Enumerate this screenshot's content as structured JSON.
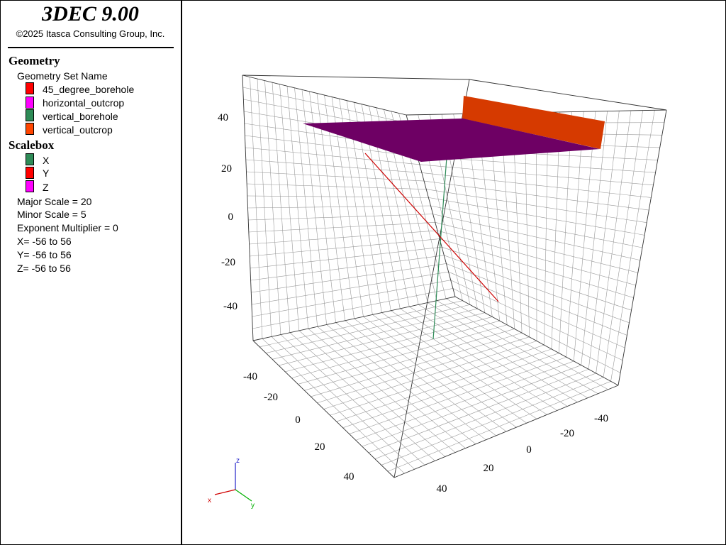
{
  "app": {
    "title": "3DEC 9.00",
    "copyright": "©2025 Itasca Consulting Group, Inc."
  },
  "legend": {
    "geometry_title": "Geometry",
    "geometry_set_header": "Geometry Set Name",
    "geometry_sets": [
      {
        "label": "45_degree_borehole",
        "color": "#ff0000"
      },
      {
        "label": "horizontal_outcrop",
        "color": "#ff00ff"
      },
      {
        "label": "vertical_borehole",
        "color": "#2e8b57"
      },
      {
        "label": "vertical_outcrop",
        "color": "#ff4500"
      }
    ],
    "scalebox_title": "Scalebox",
    "axes": [
      {
        "label": "X",
        "color": "#2e8b57"
      },
      {
        "label": "Y",
        "color": "#ff0000"
      },
      {
        "label": "Z",
        "color": "#ff00ff"
      }
    ],
    "info": [
      "Major Scale = 20",
      "Minor Scale = 5",
      "Exponent Multiplier = 0",
      "X= -56 to 56",
      "Y= -56 to 56",
      "Z= -56 to 56"
    ]
  },
  "plot": {
    "z_ticks": [
      "40",
      "20",
      "0",
      "-20",
      "-40"
    ],
    "left_axis_ticks": [
      "-40",
      "-20",
      "0",
      "20",
      "40"
    ],
    "right_axis_ticks": [
      "-40",
      "-20",
      "0",
      "20",
      "40"
    ],
    "triad": {
      "x": "x",
      "y": "y",
      "z": "z"
    },
    "colors": {
      "horizontal_outcrop": "#6e0064",
      "vertical_outcrop": "#d63a00",
      "borehole_45": "#cc0000",
      "borehole_vertical": "#2e8b57",
      "grid": "#9a9a9a",
      "edge": "#333333"
    }
  }
}
